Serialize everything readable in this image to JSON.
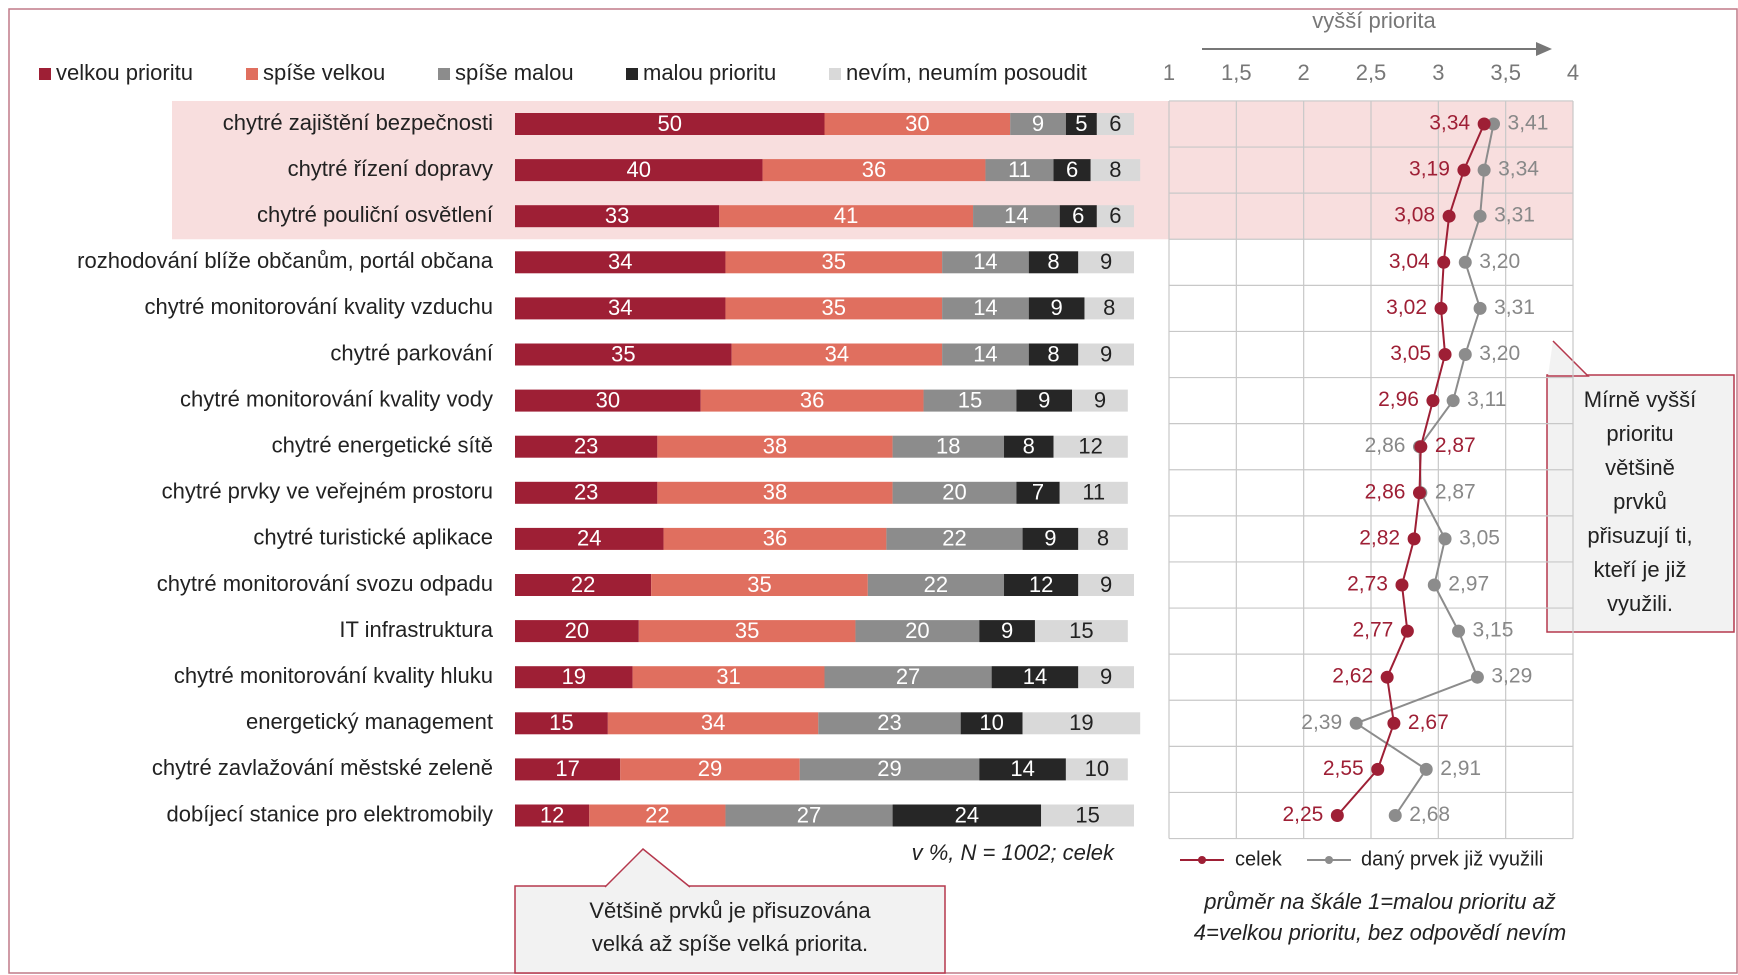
{
  "chart_data": [
    {
      "type": "bar",
      "orientation": "horizontal",
      "stacked": true,
      "categories": [
        "chytré zajištění bezpečnosti",
        "chytré řízení dopravy",
        "chytré pouliční osvětlení",
        "rozhodování blíže občanům, portál občana",
        "chytré monitorování kvality vzduchu",
        "chytré parkování",
        "chytré monitorování kvality vody",
        "chytré energetické sítě",
        "chytré prvky ve veřejném prostoru",
        "chytré turistické aplikace",
        "chytré monitorování svozu odpadu",
        "IT infrastruktura",
        "chytré monitorování kvality hluku",
        "energetický management",
        "chytré zavlažování městské zeleně",
        "dobíjecí stanice pro elektromobily"
      ],
      "series": [
        {
          "name": "velkou prioritu",
          "color": "#9e1f35",
          "values": [
            50,
            40,
            33,
            34,
            34,
            35,
            30,
            23,
            23,
            24,
            22,
            20,
            19,
            15,
            17,
            12
          ]
        },
        {
          "name": "spíše velkou",
          "color": "#e06f5f",
          "values": [
            30,
            36,
            41,
            35,
            35,
            34,
            36,
            38,
            38,
            36,
            35,
            35,
            31,
            34,
            29,
            22
          ]
        },
        {
          "name": "spíše malou",
          "color": "#8c8c8c",
          "values": [
            9,
            11,
            14,
            14,
            14,
            14,
            15,
            18,
            20,
            22,
            22,
            20,
            27,
            23,
            29,
            27
          ]
        },
        {
          "name": "malou prioritu",
          "color": "#262626",
          "values": [
            5,
            6,
            6,
            8,
            9,
            8,
            9,
            8,
            7,
            9,
            12,
            9,
            14,
            10,
            14,
            24
          ]
        },
        {
          "name": "nevím, neumím posoudit",
          "color": "#d9d9d9",
          "values": [
            6,
            8,
            6,
            9,
            8,
            9,
            9,
            12,
            11,
            8,
            9,
            15,
            9,
            19,
            10,
            15
          ]
        }
      ],
      "xlim": [
        0,
        100
      ],
      "highlight_rows": 3,
      "note": "v %, N = 1002; celek",
      "callout": [
        "Většině prvků je přisuzována",
        "velká až spíše velká priorita."
      ]
    },
    {
      "type": "line",
      "axis_label": "vyšší priorita",
      "series": [
        {
          "name": "celek",
          "color": "#9e1f35",
          "values": [
            3.34,
            3.19,
            3.08,
            3.04,
            3.02,
            3.05,
            2.96,
            2.87,
            2.86,
            2.82,
            2.73,
            2.77,
            2.62,
            2.67,
            2.55,
            2.25
          ],
          "value_labels": [
            "3,34",
            "3,19",
            "3,08",
            "3,04",
            "3,02",
            "3,05",
            "2,96",
            "2,87",
            "2,86",
            "2,82",
            "2,73",
            "2,77",
            "2,62",
            "2,67",
            "2,55",
            "2,25"
          ]
        },
        {
          "name": "daný prvek již využili",
          "color": "#8c8c8c",
          "values": [
            3.41,
            3.34,
            3.31,
            3.2,
            3.31,
            3.2,
            3.11,
            2.86,
            2.87,
            3.05,
            2.97,
            3.15,
            3.29,
            2.39,
            2.91,
            2.68
          ],
          "value_labels": [
            "3,41",
            "3,34",
            "3,31",
            "3,20",
            "3,31",
            "3,20",
            "3,11",
            "2,86",
            "2,87",
            "3,05",
            "2,97",
            "3,15",
            "3,29",
            "2,39",
            "2,91",
            "2,68"
          ]
        }
      ],
      "xlim": [
        1,
        4
      ],
      "xticks": [
        1,
        {
          "value": 1.5,
          "label": "1,5"
        },
        2,
        {
          "value": 2.5,
          "label": "2,5"
        },
        3,
        {
          "value": 3.5,
          "label": "3,5"
        },
        4
      ],
      "grid": true,
      "callout": [
        "Mírně vyšší",
        "prioritu",
        "většině",
        "prvků",
        "přisuzují ti,",
        "kteří je již",
        "využili."
      ],
      "footnote": [
        "průměr na škále 1=malou prioritu až",
        "4=velkou prioritu, bez odpovědí nevím"
      ]
    }
  ]
}
